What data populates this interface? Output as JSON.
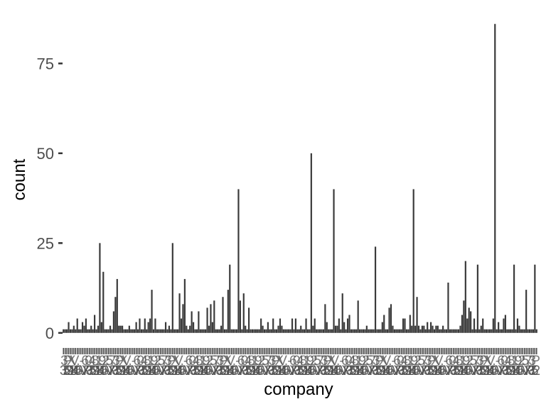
{
  "chart_data": {
    "type": "bar",
    "xlabel": "company",
    "ylabel": "count",
    "ylim": [
      -3.2,
      89.5
    ],
    "y_ticks": [
      0,
      25,
      50,
      75
    ],
    "y_tick_labels": [
      "0",
      "25",
      "50",
      "75"
    ],
    "grid": false,
    "legend": "none",
    "bar_color": "#3a3a3a",
    "x_tick_labels_note": "x tick labels overprinted and illegible",
    "values": [
      1,
      1,
      1,
      3,
      1,
      1,
      2,
      1,
      4,
      1,
      1,
      3,
      2,
      4,
      1,
      1,
      2,
      1,
      5,
      1,
      2,
      25,
      3,
      17,
      1,
      1,
      1,
      2,
      1,
      6,
      10,
      15,
      2,
      2,
      2,
      1,
      1,
      1,
      2,
      1,
      1,
      1,
      3,
      1,
      4,
      1,
      1,
      4,
      1,
      3,
      4,
      12,
      1,
      4,
      1,
      1,
      1,
      1,
      1,
      3,
      1,
      2,
      1,
      25,
      1,
      1,
      1,
      11,
      4,
      8,
      15,
      2,
      1,
      2,
      6,
      3,
      1,
      1,
      6,
      1,
      1,
      1,
      1,
      7,
      2,
      8,
      3,
      9,
      1,
      1,
      1,
      2,
      10,
      1,
      1,
      12,
      19,
      1,
      1,
      1,
      1,
      40,
      9,
      1,
      11,
      2,
      1,
      7,
      1,
      1,
      1,
      1,
      1,
      1,
      4,
      2,
      1,
      1,
      3,
      1,
      1,
      4,
      1,
      1,
      2,
      4,
      2,
      1,
      1,
      1,
      1,
      1,
      4,
      1,
      4,
      1,
      1,
      2,
      1,
      1,
      4,
      1,
      1,
      50,
      2,
      4,
      1,
      1,
      1,
      1,
      1,
      8,
      3,
      1,
      1,
      1,
      40,
      2,
      2,
      4,
      1,
      11,
      3,
      1,
      4,
      5,
      1,
      1,
      1,
      1,
      9,
      1,
      1,
      1,
      1,
      2,
      1,
      1,
      1,
      1,
      24,
      1,
      1,
      1,
      3,
      5,
      1,
      1,
      7,
      8,
      2,
      1,
      1,
      1,
      1,
      1,
      4,
      4,
      1,
      1,
      5,
      2,
      40,
      2,
      10,
      2,
      1,
      2,
      2,
      1,
      3,
      1,
      3,
      2,
      1,
      2,
      2,
      1,
      1,
      2,
      1,
      1,
      14,
      1,
      1,
      1,
      1,
      1,
      1,
      2,
      5,
      9,
      20,
      4,
      7,
      6,
      1,
      4,
      1,
      19,
      1,
      2,
      4,
      1,
      1,
      1,
      1,
      1,
      4,
      86,
      1,
      3,
      1,
      1,
      4,
      5,
      1,
      1,
      1,
      1,
      19,
      1,
      4,
      2,
      1,
      1,
      1,
      12,
      1,
      1,
      1,
      1,
      19,
      1
    ]
  }
}
